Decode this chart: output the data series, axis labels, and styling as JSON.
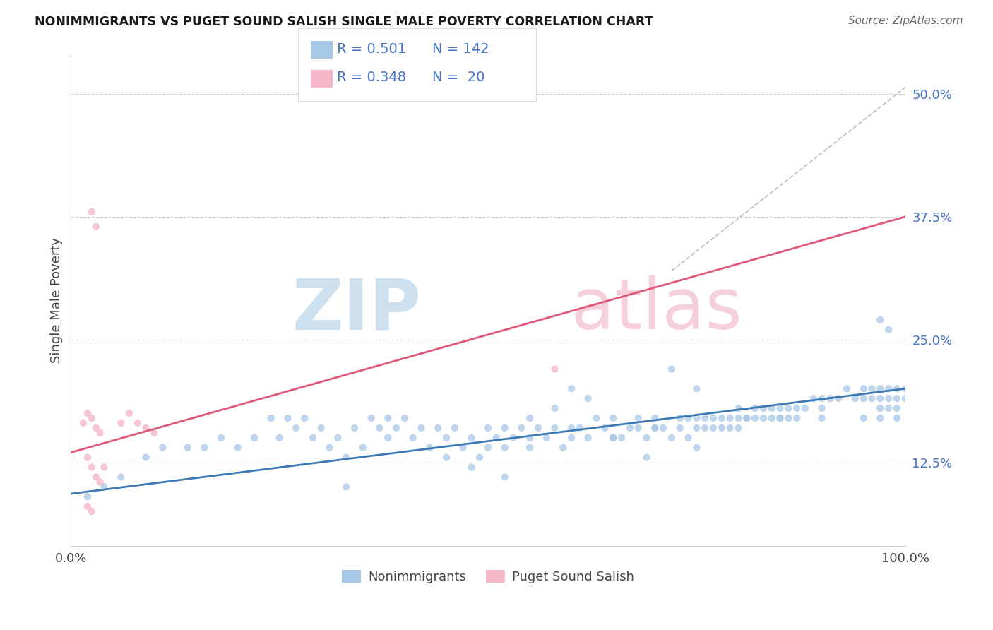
{
  "title": "NONIMMIGRANTS VS PUGET SOUND SALISH SINGLE MALE POVERTY CORRELATION CHART",
  "source": "Source: ZipAtlas.com",
  "ylabel": "Single Male Poverty",
  "xlim": [
    0,
    1
  ],
  "ylim": [
    0.04,
    0.54
  ],
  "ytick_values": [
    0.125,
    0.25,
    0.375,
    0.5
  ],
  "xtick_labels": [
    "0.0%",
    "100.0%"
  ],
  "legend_R1": "0.501",
  "legend_N1": "142",
  "legend_R2": "0.348",
  "legend_N2": "20",
  "blue_color": "#a8c8e8",
  "pink_color": "#f4b8c8",
  "blue_line_color": "#3d7ab5",
  "pink_line_color": "#e05878",
  "grid_color": "#cccccc",
  "blue_scatter_x": [
    0.02,
    0.04,
    0.06,
    0.09,
    0.11,
    0.14,
    0.16,
    0.18,
    0.2,
    0.22,
    0.24,
    0.25,
    0.26,
    0.27,
    0.28,
    0.29,
    0.3,
    0.31,
    0.32,
    0.33,
    0.34,
    0.35,
    0.36,
    0.37,
    0.38,
    0.39,
    0.4,
    0.41,
    0.42,
    0.43,
    0.44,
    0.45,
    0.46,
    0.47,
    0.48,
    0.49,
    0.5,
    0.5,
    0.51,
    0.52,
    0.52,
    0.53,
    0.54,
    0.55,
    0.55,
    0.56,
    0.57,
    0.58,
    0.59,
    0.6,
    0.6,
    0.61,
    0.62,
    0.63,
    0.64,
    0.65,
    0.65,
    0.66,
    0.67,
    0.68,
    0.68,
    0.69,
    0.7,
    0.7,
    0.71,
    0.72,
    0.73,
    0.73,
    0.74,
    0.74,
    0.75,
    0.75,
    0.76,
    0.76,
    0.77,
    0.77,
    0.78,
    0.78,
    0.79,
    0.79,
    0.8,
    0.8,
    0.81,
    0.81,
    0.82,
    0.82,
    0.83,
    0.83,
    0.84,
    0.84,
    0.85,
    0.85,
    0.86,
    0.86,
    0.87,
    0.87,
    0.88,
    0.89,
    0.9,
    0.9,
    0.91,
    0.92,
    0.93,
    0.94,
    0.95,
    0.95,
    0.96,
    0.96,
    0.97,
    0.97,
    0.97,
    0.97,
    0.98,
    0.98,
    0.98,
    0.99,
    0.99,
    0.99,
    1.0,
    1.0,
    0.33,
    0.38,
    0.45,
    0.52,
    0.58,
    0.62,
    0.69,
    0.72,
    0.75,
    0.48,
    0.55,
    0.6,
    0.65,
    0.7,
    0.75,
    0.8,
    0.85,
    0.9,
    0.95,
    0.99,
    0.97,
    0.98
  ],
  "blue_scatter_y": [
    0.09,
    0.1,
    0.11,
    0.13,
    0.14,
    0.14,
    0.14,
    0.15,
    0.14,
    0.15,
    0.17,
    0.15,
    0.17,
    0.16,
    0.17,
    0.15,
    0.16,
    0.14,
    0.15,
    0.13,
    0.16,
    0.14,
    0.17,
    0.16,
    0.15,
    0.16,
    0.17,
    0.15,
    0.16,
    0.14,
    0.16,
    0.15,
    0.16,
    0.14,
    0.15,
    0.13,
    0.16,
    0.14,
    0.15,
    0.14,
    0.16,
    0.15,
    0.16,
    0.17,
    0.14,
    0.16,
    0.15,
    0.16,
    0.14,
    0.2,
    0.15,
    0.16,
    0.15,
    0.17,
    0.16,
    0.15,
    0.17,
    0.15,
    0.16,
    0.17,
    0.16,
    0.15,
    0.16,
    0.17,
    0.16,
    0.15,
    0.17,
    0.16,
    0.17,
    0.15,
    0.16,
    0.17,
    0.16,
    0.17,
    0.16,
    0.17,
    0.16,
    0.17,
    0.16,
    0.17,
    0.17,
    0.16,
    0.17,
    0.17,
    0.18,
    0.17,
    0.18,
    0.17,
    0.18,
    0.17,
    0.18,
    0.17,
    0.18,
    0.17,
    0.18,
    0.17,
    0.18,
    0.19,
    0.18,
    0.19,
    0.19,
    0.19,
    0.2,
    0.19,
    0.19,
    0.2,
    0.19,
    0.2,
    0.19,
    0.2,
    0.17,
    0.18,
    0.19,
    0.2,
    0.18,
    0.19,
    0.2,
    0.18,
    0.19,
    0.2,
    0.1,
    0.17,
    0.13,
    0.11,
    0.18,
    0.19,
    0.13,
    0.22,
    0.2,
    0.12,
    0.15,
    0.16,
    0.15,
    0.16,
    0.14,
    0.18,
    0.17,
    0.17,
    0.17,
    0.17,
    0.27,
    0.26
  ],
  "pink_scatter_x": [
    0.015,
    0.02,
    0.025,
    0.03,
    0.035,
    0.02,
    0.025,
    0.03,
    0.035,
    0.04,
    0.025,
    0.03,
    0.06,
    0.07,
    0.08,
    0.09,
    0.1,
    0.02,
    0.025,
    0.58
  ],
  "pink_scatter_y": [
    0.165,
    0.175,
    0.17,
    0.16,
    0.155,
    0.13,
    0.12,
    0.11,
    0.105,
    0.12,
    0.38,
    0.365,
    0.165,
    0.175,
    0.165,
    0.16,
    0.155,
    0.08,
    0.075,
    0.22
  ],
  "blue_line_x": [
    0.0,
    1.0
  ],
  "blue_line_y": [
    0.093,
    0.2
  ],
  "pink_line_x": [
    0.0,
    1.0
  ],
  "pink_line_y": [
    0.135,
    0.375
  ],
  "dash_line_x": [
    0.72,
    1.02
  ],
  "dash_line_y": [
    0.32,
    0.52
  ]
}
